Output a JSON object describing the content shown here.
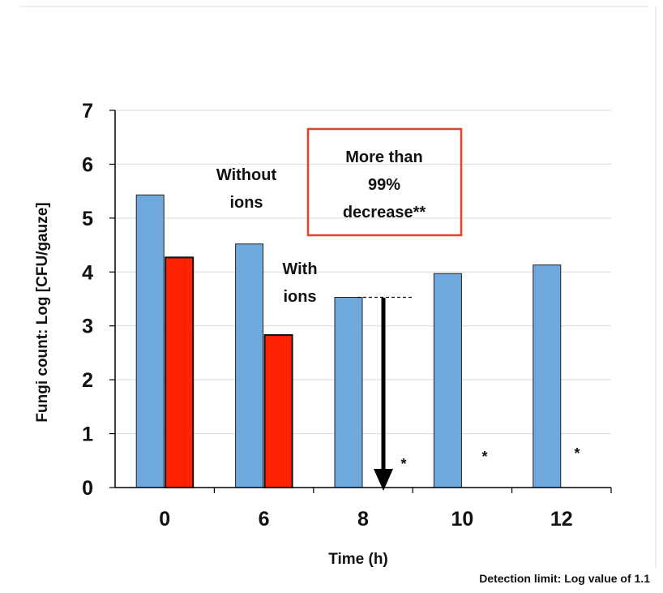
{
  "chart_data": {
    "type": "bar",
    "title": "",
    "xlabel": "Time (h)",
    "ylabel": "Fungi count: Log [CFU/gauze]",
    "categories": [
      "0",
      "6",
      "8",
      "10",
      "12"
    ],
    "ylim": [
      0,
      7
    ],
    "yticks": [
      "0",
      "1",
      "2",
      "3",
      "4",
      "5",
      "6",
      "7"
    ],
    "grid": true,
    "series": [
      {
        "name": "Without ions",
        "color": "#6fa8dc",
        "values": [
          5.43,
          4.52,
          3.53,
          3.97,
          4.13
        ]
      },
      {
        "name": "With ions",
        "color": "#ff2200",
        "values": [
          4.27,
          2.83,
          null,
          null,
          null
        ]
      }
    ],
    "annotations": {
      "series1_label": [
        "Without",
        "ions"
      ],
      "series2_label": [
        "With",
        "ions"
      ],
      "box_text": [
        "More than",
        "99%",
        "decrease**"
      ],
      "box_color": "#e8402a",
      "star": "*",
      "star_categories": [
        "8",
        "10",
        "12"
      ],
      "detection_note": "Detection limit: Log value of 1.1"
    }
  }
}
